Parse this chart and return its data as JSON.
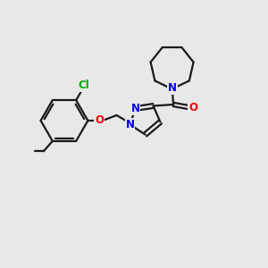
{
  "background_color": "#e8e8e8",
  "bond_color": "#1a1a1a",
  "bond_width": 1.6,
  "atom_colors": {
    "N": "#0000ee",
    "O": "#ee0000",
    "Cl": "#00aa00",
    "C": "#1a1a1a"
  },
  "font_size": 8.5,
  "fig_size": [
    3.0,
    3.0
  ],
  "dpi": 100
}
